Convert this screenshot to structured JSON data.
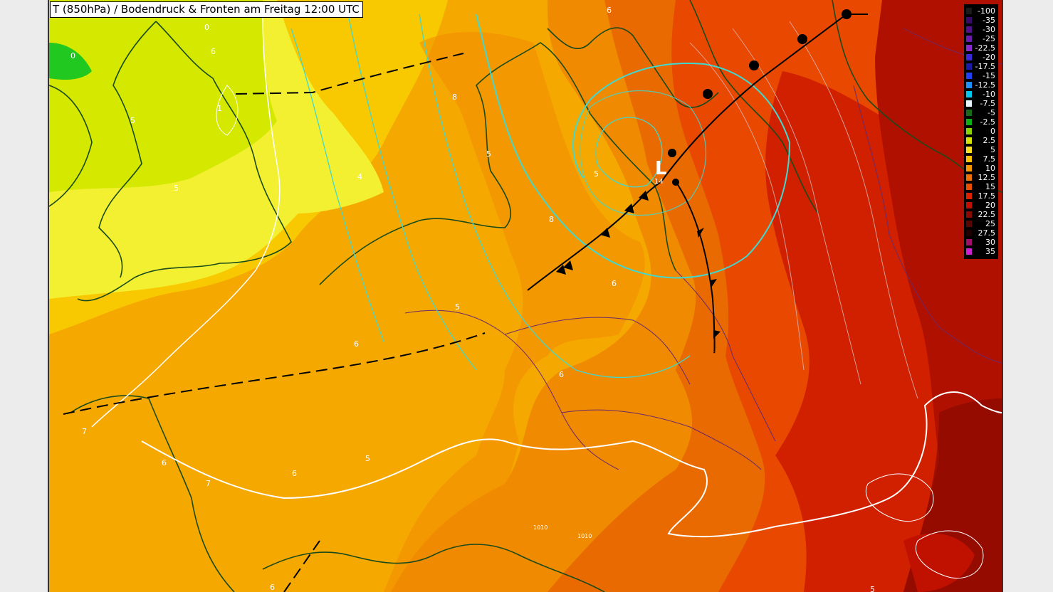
{
  "title": "T (850hPa) / Bodendruck & Fronten am Freitag 12:00 UTC",
  "legend": {
    "entries": [
      {
        "label": "-100",
        "color": "#1a1a1a"
      },
      {
        "label": "-35",
        "color": "#3a0a6a"
      },
      {
        "label": "-30",
        "color": "#56108e"
      },
      {
        "label": "-25",
        "color": "#6d1cb0"
      },
      {
        "label": "-22.5",
        "color": "#8a2bd0"
      },
      {
        "label": "-20",
        "color": "#3a2bd8"
      },
      {
        "label": "-17.5",
        "color": "#1b1ba8"
      },
      {
        "label": "-15",
        "color": "#2040ff"
      },
      {
        "label": "-12.5",
        "color": "#1e90ff"
      },
      {
        "label": "-10",
        "color": "#00c8f0"
      },
      {
        "label": "-7.5",
        "color": "#e8f4ff"
      },
      {
        "label": "-5",
        "color": "#1a6a1a"
      },
      {
        "label": "-2.5",
        "color": "#10b010"
      },
      {
        "label": "0",
        "color": "#8ad400"
      },
      {
        "label": "2.5",
        "color": "#d8e400"
      },
      {
        "label": "5",
        "color": "#f8e020"
      },
      {
        "label": "7.5",
        "color": "#f8c000"
      },
      {
        "label": "10",
        "color": "#f89800"
      },
      {
        "label": "12.5",
        "color": "#f07000"
      },
      {
        "label": "15",
        "color": "#e85000"
      },
      {
        "label": "17.5",
        "color": "#e02000"
      },
      {
        "label": "20",
        "color": "#c01000"
      },
      {
        "label": "22.5",
        "color": "#8a0a00"
      },
      {
        "label": "25",
        "color": "#5a0500"
      },
      {
        "label": "27.5",
        "color": "#200000"
      },
      {
        "label": "30",
        "color": "#a0106a"
      },
      {
        "label": "35",
        "color": "#d020d0"
      }
    ]
  },
  "low_pressure": {
    "symbol": "L",
    "value": "14"
  },
  "isobar_labels": [
    "1010",
    "1010"
  ],
  "contour_labels": [
    "0",
    "0",
    "6",
    "1",
    "5",
    "5",
    "4",
    "8",
    "5",
    "5",
    "8",
    "5",
    "6",
    "5",
    "6",
    "6",
    "6",
    "7",
    "6",
    "5",
    "6",
    "7",
    "6"
  ],
  "colors": {
    "zone_green": "#20c820",
    "zone_yellow_green": "#d4e800",
    "zone_yellow": "#f2f030",
    "zone_gold": "#f8c800",
    "zone_orange_light": "#f5a800",
    "zone_orange": "#f08a00",
    "zone_orange_dark": "#e86a00",
    "zone_red": "#e84800",
    "zone_deep_red": "#d02000",
    "zone_maroon": "#b01000",
    "coastline": "#1a4a1a",
    "border": "#6a2a6a",
    "front": "#000000",
    "isotherm_white": "#ffffff",
    "isobar_cyan": "#40d8d0"
  }
}
